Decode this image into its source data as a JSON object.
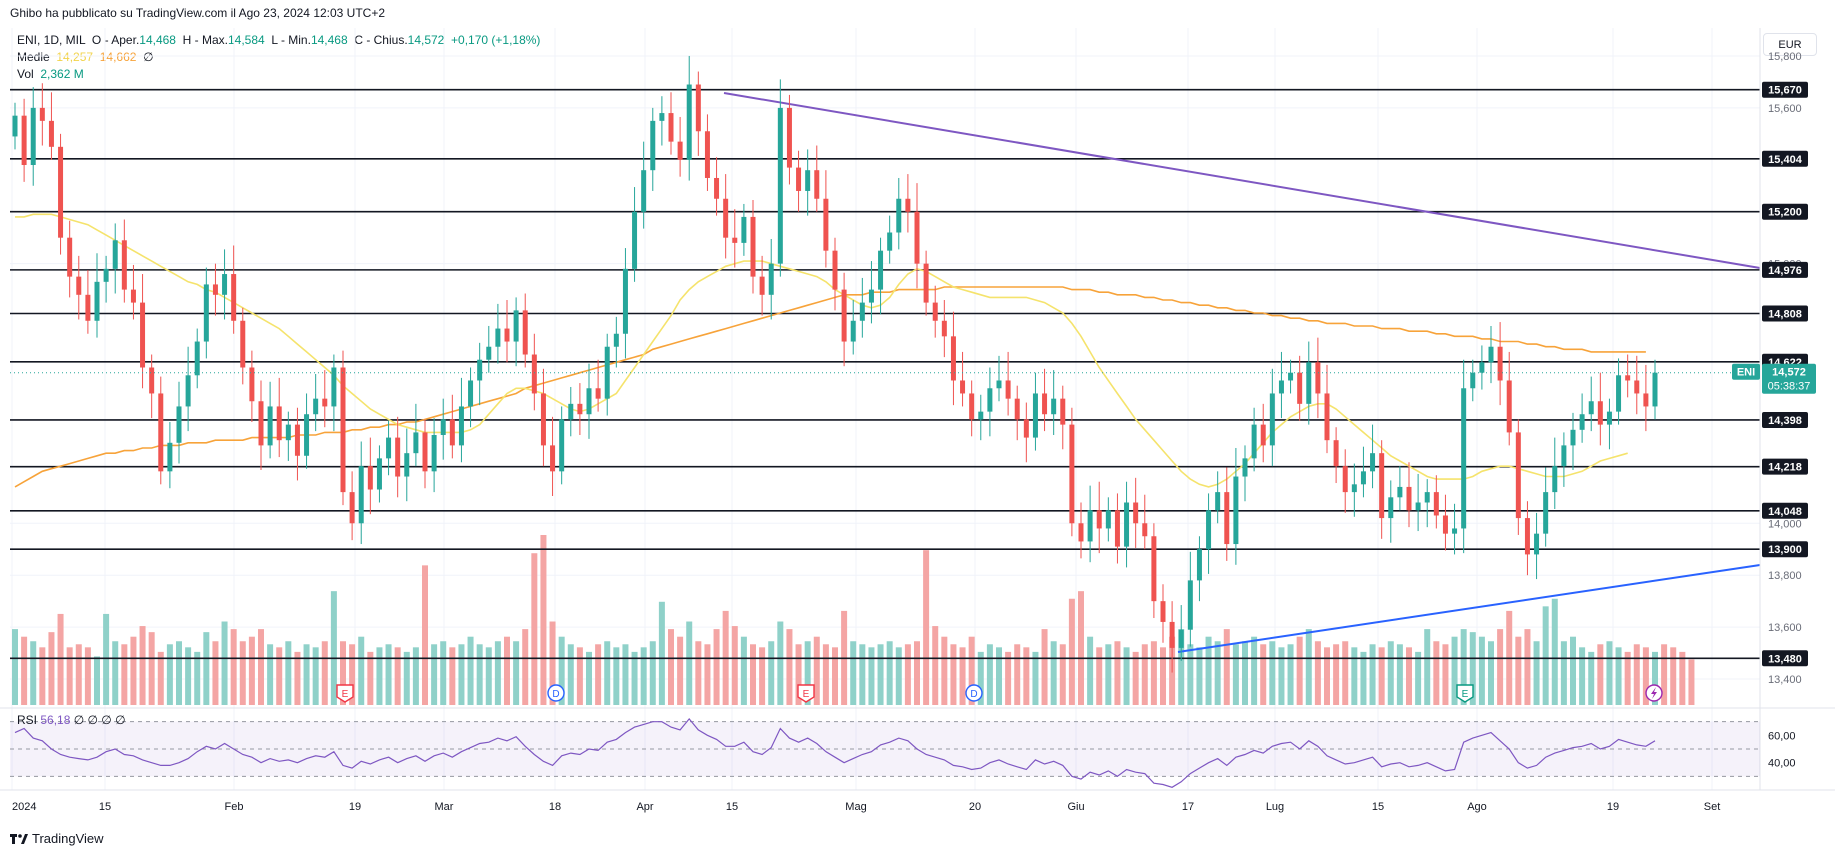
{
  "attribution": "Ghibo ha pubblicato su TradingView.com il Ago 23, 2024 12:03 UTC+2",
  "legend": {
    "symbol": "ENI, 1D, MIL",
    "open_label": "O - Aper.",
    "open": "14,468",
    "high_label": "H - Max.",
    "high": "14,584",
    "low_label": "L - Min.",
    "low": "14,468",
    "close_label": "C - Chius.",
    "close": "14,572",
    "change": "+0,170 (+1,18%)",
    "ma_label": "Medie",
    "ma1": "14,257",
    "ma2": "14,662",
    "ma_extra": "∅",
    "vol_label": "Vol",
    "vol": "2,362 M"
  },
  "currency": "EUR",
  "rsi": {
    "label": "RSI",
    "value": "56,18",
    "extra": "∅ ∅ ∅ ∅",
    "ticks": [
      "60,00",
      "40,00"
    ]
  },
  "footer": {
    "brand": "TradingView"
  },
  "colors": {
    "up": "#26a69a",
    "down": "#ef5350",
    "ma_short": "#f5e36c",
    "ma_long": "#f7a33a",
    "resistance_line": "#7e57c2",
    "support_line": "#2962ff",
    "rsi": "#7e57c2"
  },
  "price_badge": {
    "symbol": "ENI",
    "price": "14,572",
    "countdown": "05:38:37"
  },
  "chart_data": {
    "type": "candlestick",
    "y_axis_ticks": [
      15.8,
      15.6,
      15.0,
      14.0,
      13.8,
      13.6,
      13.4
    ],
    "y_axis_tick_labels": [
      "15,800",
      "15,600",
      "15,000",
      "14,000",
      "13,800",
      "13,600",
      "13,400"
    ],
    "x_axis_labels": [
      "2024",
      "15",
      "Feb",
      "19",
      "Mar",
      "18",
      "Apr",
      "15",
      "Mag",
      "20",
      "Giu",
      "17",
      "Lug",
      "15",
      "Ago",
      "19",
      "Set"
    ],
    "horizontal_levels": [
      15.67,
      15.404,
      15.2,
      14.976,
      14.808,
      14.622,
      14.398,
      14.218,
      14.048,
      13.9,
      13.48
    ],
    "horizontal_level_labels": [
      "15,670",
      "15,404",
      "15,200",
      "14,976",
      "14,808",
      "14,622",
      "14,398",
      "14,218",
      "14,048",
      "13,900",
      "13,480"
    ],
    "events": [
      "E",
      "D",
      "E",
      "D",
      "E"
    ],
    "closes": [
      15.57,
      15.38,
      15.6,
      15.55,
      15.45,
      15.1,
      14.95,
      14.88,
      14.78,
      14.93,
      14.98,
      15.09,
      14.9,
      14.85,
      14.6,
      14.5,
      14.2,
      14.31,
      14.45,
      14.57,
      14.7,
      14.92,
      14.88,
      14.96,
      14.78,
      14.6,
      14.47,
      14.3,
      14.45,
      14.32,
      14.38,
      14.26,
      14.42,
      14.48,
      14.45,
      14.6,
      14.12,
      14.0,
      14.22,
      14.13,
      14.25,
      14.33,
      14.18,
      14.27,
      14.35,
      14.2,
      14.34,
      14.4,
      14.3,
      14.45,
      14.55,
      14.63,
      14.68,
      14.75,
      14.7,
      14.82,
      14.65,
      14.5,
      14.3,
      14.2,
      14.4,
      14.46,
      14.42,
      14.52,
      14.48,
      14.68,
      14.73,
      14.98,
      15.2,
      15.36,
      15.55,
      15.58,
      15.47,
      15.4,
      15.69,
      15.51,
      15.33,
      15.25,
      15.1,
      15.08,
      15.18,
      14.95,
      14.88,
      15.0,
      15.6,
      15.37,
      15.28,
      15.36,
      15.25,
      15.05,
      14.9,
      14.7,
      14.78,
      14.85,
      14.9,
      15.05,
      15.12,
      15.25,
      15.2,
      15.0,
      14.85,
      14.78,
      14.72,
      14.55,
      14.5,
      14.4,
      14.43,
      14.52,
      14.55,
      14.48,
      14.4,
      14.33,
      14.5,
      14.42,
      14.48,
      14.38,
      14.0,
      13.93,
      14.05,
      13.98,
      14.05,
      13.91,
      14.08,
      14.0,
      13.95,
      13.7,
      13.62,
      13.52,
      13.59,
      13.78,
      13.9,
      14.05,
      14.12,
      13.92,
      14.18,
      14.25,
      14.38,
      14.3,
      14.5,
      14.55,
      14.58,
      14.46,
      14.62,
      14.5,
      14.32,
      14.22,
      14.12,
      14.15,
      14.2,
      14.27,
      14.02,
      14.1,
      14.14,
      14.05,
      14.08,
      14.12,
      14.03,
      13.96,
      13.98,
      14.52,
      14.58,
      14.62,
      14.68,
      14.55,
      14.35,
      14.02,
      13.88,
      13.96,
      14.12,
      14.22,
      14.3,
      14.36,
      14.42,
      14.47,
      14.38,
      14.43,
      14.57,
      14.55,
      14.5,
      14.45,
      14.58
    ],
    "volume_relative": [
      0.5,
      0.45,
      0.42,
      0.38,
      0.48,
      0.6,
      0.38,
      0.4,
      0.38,
      0.32,
      0.6,
      0.42,
      0.4,
      0.45,
      0.52,
      0.48,
      0.35,
      0.4,
      0.42,
      0.38,
      0.35,
      0.48,
      0.42,
      0.55,
      0.5,
      0.42,
      0.45,
      0.5,
      0.4,
      0.38,
      0.42,
      0.35,
      0.4,
      0.38,
      0.42,
      0.75,
      0.42,
      0.4,
      0.45,
      0.35,
      0.38,
      0.4,
      0.38,
      0.35,
      0.38,
      0.92,
      0.4,
      0.42,
      0.38,
      0.4,
      0.45,
      0.4,
      0.38,
      0.42,
      0.45,
      0.42,
      0.5,
      1.0,
      1.12,
      0.55,
      0.45,
      0.4,
      0.38,
      0.35,
      0.4,
      0.42,
      0.38,
      0.4,
      0.35,
      0.38,
      0.42,
      0.68,
      0.5,
      0.45,
      0.55,
      0.42,
      0.4,
      0.5,
      0.62,
      0.52,
      0.45,
      0.4,
      0.38,
      0.42,
      0.55,
      0.5,
      0.4,
      0.42,
      0.45,
      0.4,
      0.38,
      0.62,
      0.42,
      0.4,
      0.38,
      0.4,
      0.42,
      0.38,
      0.4,
      0.42,
      1.02,
      0.52,
      0.45,
      0.4,
      0.38,
      0.45,
      0.35,
      0.4,
      0.38,
      0.35,
      0.4,
      0.38,
      0.35,
      0.5,
      0.42,
      0.4,
      0.7,
      0.75,
      0.45,
      0.38,
      0.4,
      0.42,
      0.38,
      0.35,
      0.4,
      0.42,
      0.38,
      0.45,
      0.5,
      0.4,
      0.38,
      0.45,
      0.42,
      0.5,
      0.4,
      0.42,
      0.45,
      0.4,
      0.42,
      0.38,
      0.4,
      0.45,
      0.5,
      0.42,
      0.38,
      0.4,
      0.42,
      0.38,
      0.35,
      0.4,
      0.38,
      0.42,
      0.4,
      0.38,
      0.35,
      0.5,
      0.42,
      0.4,
      0.45,
      0.5,
      0.48,
      0.45,
      0.42,
      0.5,
      0.62,
      0.45,
      0.5,
      0.42,
      0.65,
      0.7,
      0.42,
      0.45,
      0.38,
      0.35,
      0.4,
      0.42,
      0.38,
      0.35,
      0.4,
      0.38,
      0.35,
      0.4,
      0.38,
      0.35,
      0.3
    ],
    "ma_short": [
      15.18,
      15.18,
      15.19,
      15.19,
      15.19,
      15.18,
      15.17,
      15.16,
      15.15,
      15.13,
      15.11,
      15.09,
      15.07,
      15.05,
      15.03,
      15.01,
      14.99,
      14.97,
      14.95,
      14.93,
      14.92,
      14.9,
      14.89,
      14.87,
      14.85,
      14.83,
      14.81,
      14.79,
      14.77,
      14.75,
      14.72,
      14.69,
      14.66,
      14.63,
      14.6,
      14.57,
      14.53,
      14.5,
      14.47,
      14.44,
      14.42,
      14.4,
      14.38,
      14.37,
      14.36,
      14.35,
      14.35,
      14.35,
      14.35,
      14.35,
      14.36,
      14.38,
      14.42,
      14.46,
      14.5,
      14.52,
      14.52,
      14.51,
      14.5,
      14.48,
      14.46,
      14.44,
      14.43,
      14.44,
      14.46,
      14.48,
      14.5,
      14.55,
      14.6,
      14.65,
      14.7,
      14.75,
      14.8,
      14.86,
      14.9,
      14.93,
      14.95,
      14.97,
      14.99,
      15.0,
      15.01,
      15.01,
      15.01,
      15.0,
      14.99,
      14.98,
      14.97,
      14.96,
      14.95,
      14.93,
      14.9,
      14.88,
      14.86,
      14.84,
      14.83,
      14.84,
      14.87,
      14.92,
      14.96,
      14.98,
      14.97,
      14.95,
      14.93,
      14.91,
      14.9,
      14.89,
      14.88,
      14.87,
      14.87,
      14.87,
      14.87,
      14.87,
      14.86,
      14.85,
      14.83,
      14.81,
      14.77,
      14.72,
      14.66,
      14.6,
      14.55,
      14.5,
      14.45,
      14.4,
      14.36,
      14.32,
      14.28,
      14.24,
      14.2,
      14.17,
      14.15,
      14.14,
      14.15,
      14.17,
      14.2,
      14.23,
      14.27,
      14.31,
      14.35,
      14.38,
      14.41,
      14.43,
      14.45,
      14.46,
      14.46,
      14.44,
      14.41,
      14.38,
      14.35,
      14.32,
      14.29,
      14.26,
      14.24,
      14.22,
      14.2,
      14.18,
      14.17,
      14.17,
      14.17,
      14.17,
      14.18,
      14.2,
      14.21,
      14.22,
      14.22,
      14.21,
      14.2,
      14.19,
      14.18,
      14.18,
      14.18,
      14.19,
      14.2,
      14.22,
      14.24,
      14.25,
      14.26,
      14.27
    ],
    "ma_long": [
      14.14,
      14.16,
      14.18,
      14.2,
      14.21,
      14.22,
      14.23,
      14.24,
      14.25,
      14.26,
      14.27,
      14.27,
      14.28,
      14.28,
      14.29,
      14.29,
      14.3,
      14.3,
      14.3,
      14.31,
      14.31,
      14.31,
      14.32,
      14.32,
      14.32,
      14.32,
      14.33,
      14.33,
      14.33,
      14.33,
      14.33,
      14.34,
      14.34,
      14.34,
      14.35,
      14.35,
      14.35,
      14.36,
      14.36,
      14.37,
      14.37,
      14.38,
      14.38,
      14.39,
      14.39,
      14.4,
      14.41,
      14.42,
      14.43,
      14.44,
      14.45,
      14.46,
      14.47,
      14.48,
      14.49,
      14.5,
      14.52,
      14.53,
      14.54,
      14.55,
      14.56,
      14.57,
      14.58,
      14.59,
      14.6,
      14.61,
      14.62,
      14.63,
      14.64,
      14.65,
      14.67,
      14.68,
      14.69,
      14.7,
      14.71,
      14.72,
      14.73,
      14.74,
      14.75,
      14.76,
      14.77,
      14.78,
      14.79,
      14.8,
      14.81,
      14.82,
      14.83,
      14.84,
      14.85,
      14.86,
      14.87,
      14.88,
      14.88,
      14.88,
      14.89,
      14.89,
      14.89,
      14.9,
      14.9,
      14.9,
      14.9,
      14.9,
      14.91,
      14.91,
      14.91,
      14.91,
      14.91,
      14.91,
      14.91,
      14.91,
      14.91,
      14.91,
      14.91,
      14.91,
      14.91,
      14.91,
      14.9,
      14.9,
      14.9,
      14.89,
      14.89,
      14.88,
      14.88,
      14.88,
      14.87,
      14.87,
      14.86,
      14.86,
      14.85,
      14.85,
      14.84,
      14.84,
      14.83,
      14.83,
      14.82,
      14.82,
      14.81,
      14.81,
      14.8,
      14.8,
      14.79,
      14.79,
      14.78,
      14.78,
      14.77,
      14.77,
      14.77,
      14.76,
      14.76,
      14.76,
      14.75,
      14.75,
      14.75,
      14.74,
      14.74,
      14.74,
      14.73,
      14.73,
      14.72,
      14.72,
      14.72,
      14.71,
      14.71,
      14.7,
      14.7,
      14.7,
      14.69,
      14.69,
      14.68,
      14.68,
      14.67,
      14.67,
      14.67,
      14.66,
      14.66,
      14.66,
      14.66,
      14.66,
      14.66,
      14.66
    ],
    "rsi": [
      62,
      65,
      58,
      56,
      50,
      46,
      44,
      43,
      42,
      44,
      48,
      50,
      46,
      45,
      42,
      40,
      38,
      38,
      40,
      43,
      48,
      52,
      50,
      54,
      50,
      46,
      44,
      40,
      43,
      41,
      42,
      40,
      43,
      45,
      44,
      48,
      38,
      36,
      41,
      39,
      42,
      44,
      40,
      43,
      45,
      41,
      45,
      47,
      44,
      48,
      51,
      54,
      55,
      58,
      56,
      59,
      52,
      46,
      41,
      38,
      45,
      47,
      46,
      50,
      49,
      55,
      57,
      62,
      66,
      68,
      70,
      70,
      66,
      64,
      72,
      64,
      60,
      57,
      52,
      52,
      55,
      48,
      46,
      51,
      65,
      58,
      55,
      58,
      54,
      48,
      44,
      40,
      43,
      46,
      48,
      53,
      55,
      58,
      56,
      50,
      46,
      44,
      42,
      38,
      37,
      35,
      36,
      40,
      42,
      39,
      37,
      35,
      42,
      39,
      41,
      38,
      30,
      28,
      33,
      31,
      34,
      30,
      35,
      33,
      32,
      25,
      24,
      22,
      26,
      32,
      36,
      40,
      43,
      38,
      44,
      46,
      49,
      47,
      52,
      54,
      55,
      50,
      56,
      52,
      45,
      42,
      39,
      40,
      42,
      44,
      37,
      39,
      40,
      37,
      38,
      40,
      37,
      34,
      35,
      55,
      58,
      60,
      62,
      56,
      50,
      40,
      36,
      38,
      44,
      47,
      49,
      51,
      52,
      54,
      50,
      52,
      57,
      55,
      53,
      52,
      56
    ],
    "rsi_range": [
      30,
      70
    ]
  }
}
